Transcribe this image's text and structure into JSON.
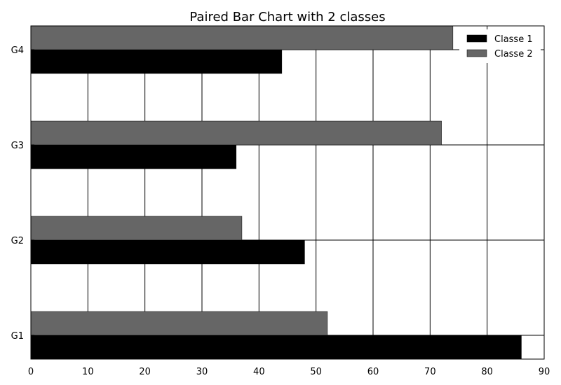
{
  "chart_data": {
    "type": "bar",
    "orientation": "horizontal",
    "title": "Paired Bar Chart with 2 classes",
    "xlabel": "",
    "ylabel": "",
    "categories": [
      "G1",
      "G2",
      "G3",
      "G4"
    ],
    "series": [
      {
        "name": "Classe 1",
        "values": [
          86,
          48,
          36,
          44
        ],
        "color": "#000000"
      },
      {
        "name": "Classe 2",
        "values": [
          52,
          37,
          72,
          74
        ],
        "color": "#666666"
      }
    ],
    "xlim": [
      0,
      90
    ],
    "xticks": [
      0,
      10,
      20,
      30,
      40,
      50,
      60,
      70,
      80,
      90
    ],
    "grid": true,
    "legend_position": "top-right"
  }
}
